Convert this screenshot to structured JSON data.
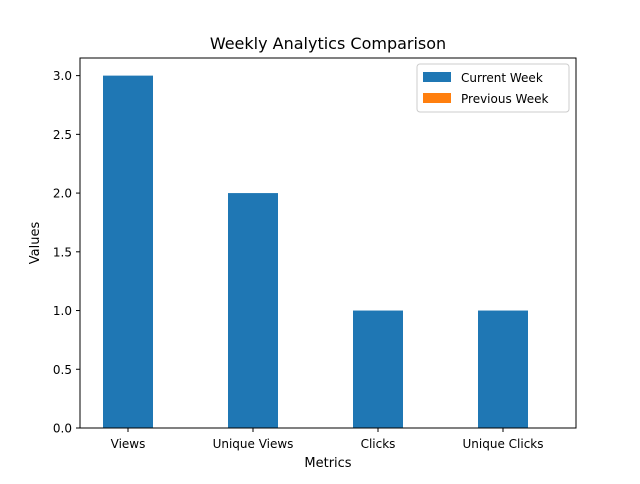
{
  "chart_data": {
    "type": "bar",
    "title": "Weekly Analytics Comparison",
    "xlabel": "Metrics",
    "ylabel": "Values",
    "categories": [
      "Views",
      "Unique Views",
      "Clicks",
      "Unique Clicks"
    ],
    "series": [
      {
        "name": "Current Week",
        "values": [
          3,
          2,
          1,
          1
        ],
        "color": "#1f77b4"
      },
      {
        "name": "Previous Week",
        "values": [
          0,
          0,
          0,
          0
        ],
        "color": "#ff7f0e"
      }
    ],
    "ylim": [
      0,
      3.15
    ],
    "yticks": [
      0.0,
      0.5,
      1.0,
      1.5,
      2.0,
      2.5,
      3.0
    ],
    "ytick_labels": [
      "0.0",
      "0.5",
      "1.0",
      "1.5",
      "2.0",
      "2.5",
      "3.0"
    ],
    "grid": false,
    "legend_position": "top-right"
  }
}
